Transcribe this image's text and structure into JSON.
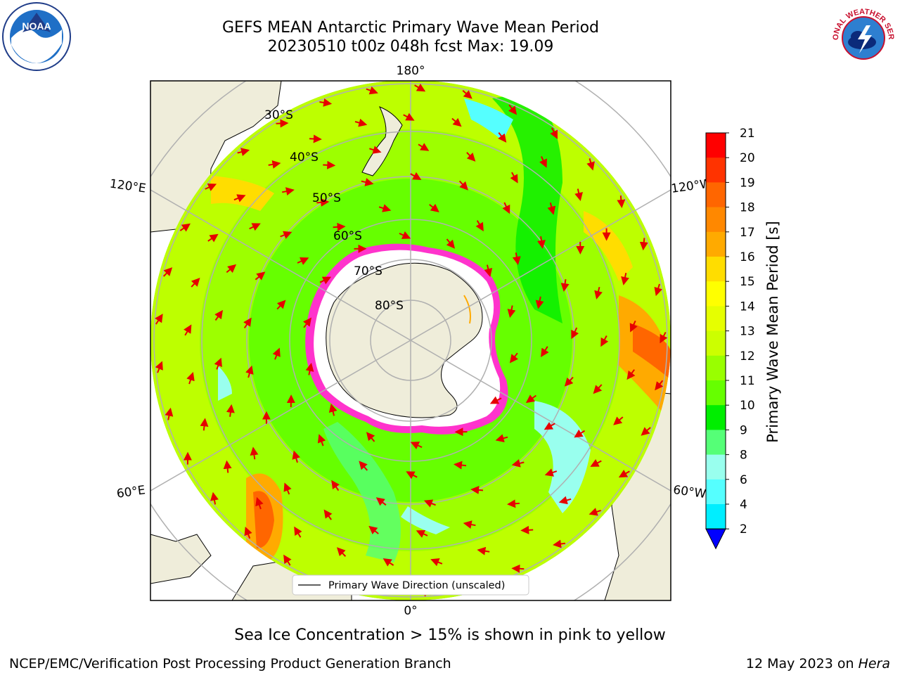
{
  "title": {
    "line1": "GEFS MEAN Antarctic Primary Wave Mean Period",
    "line2": "20230510 t00z 048h fcst   Max: 19.09"
  },
  "map": {
    "longitude_labels": {
      "top": "180°",
      "bottom": "0°",
      "upper_left": "120°E",
      "upper_right": "120°W",
      "lower_left": "60°E",
      "lower_right": "60°W"
    },
    "latitude_labels": [
      "30°S",
      "40°S",
      "50°S",
      "60°S",
      "70°S",
      "80°S"
    ],
    "legend_label": "Primary Wave Direction (unscaled)",
    "colors": {
      "land": "#efedda",
      "arrow": "#e60000",
      "sea_ice": "#ff33cc",
      "grid": "#b0b0b0"
    }
  },
  "colorbar": {
    "label": "Primary Wave Mean Period [s]",
    "ticks": [
      "21",
      "20",
      "19",
      "18",
      "17",
      "16",
      "15",
      "14",
      "13",
      "12",
      "11",
      "10",
      "9",
      "8",
      "6",
      "4",
      "2"
    ],
    "colors": [
      "#ff0000",
      "#ff3300",
      "#ff6600",
      "#ff8800",
      "#ffaa00",
      "#ffdd00",
      "#ffff00",
      "#e6ff00",
      "#ccff00",
      "#99ff00",
      "#66ff00",
      "#00ee00",
      "#55ff77",
      "#99ffee",
      "#55ffff",
      "#00eeff",
      "#0099ff",
      "#0033ff"
    ],
    "extend_color": "#0000ff"
  },
  "footer": {
    "ice_note": "Sea Ice Concentration > 15% is shown in pink to yellow",
    "credit": "NCEP/EMC/Verification Post Processing Product Generation Branch",
    "date_prefix": "12 May 2023 on",
    "date_machine": "Hera"
  },
  "logos": {
    "noaa_text": "NOAA",
    "nws_text": "NATIONAL WEATHER SERVICE"
  }
}
